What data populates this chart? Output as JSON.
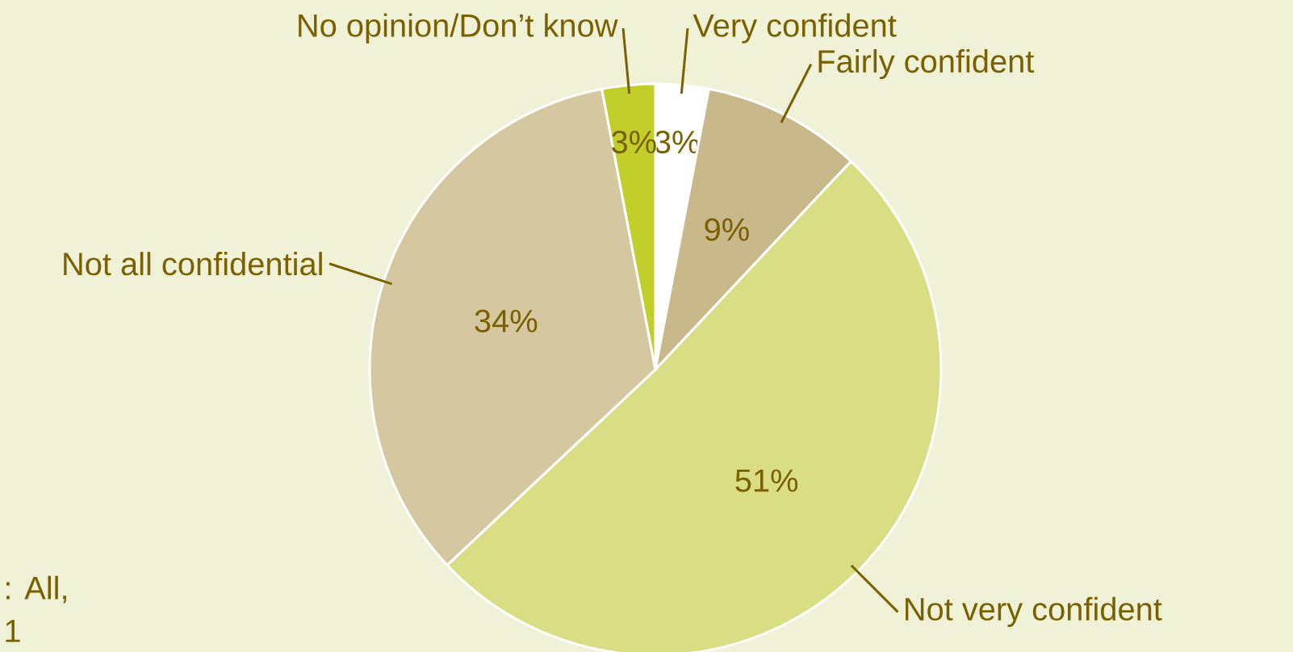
{
  "chart_data": {
    "type": "pie",
    "categories": [
      "Very confident",
      "Fairly confident",
      "Not very confident",
      "Not all confidential",
      "No opinion/Don’t know"
    ],
    "values": [
      3,
      9,
      51,
      34,
      3
    ],
    "value_labels": [
      "3%",
      "9%",
      "51%",
      "34%",
      "3%"
    ],
    "colors": [
      "#ffffff",
      "#c8b88a",
      "#d9de85",
      "#d5c79f",
      "#c2cf2a"
    ],
    "annotations": [
      ": All,",
      "1"
    ]
  }
}
